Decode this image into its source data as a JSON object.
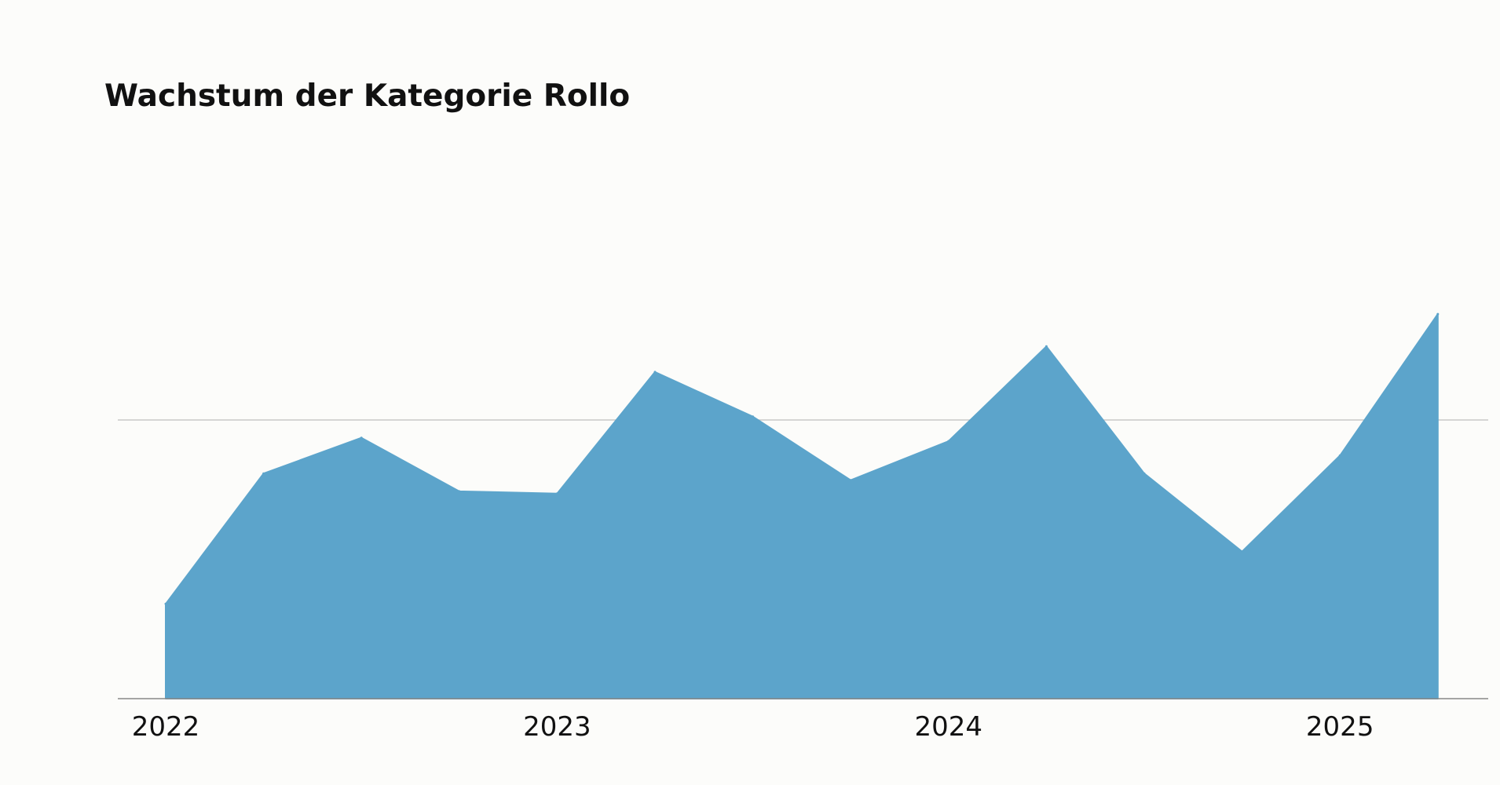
{
  "chart_data": {
    "type": "area",
    "title": "Wachstum der Kategorie Rollo",
    "xlabel": "",
    "ylabel": "",
    "x_start": "2022",
    "x_end": "2025-04",
    "x_ticks": [
      "2022",
      "2023",
      "2024",
      "2025"
    ],
    "series": [
      {
        "values": [
          0.85,
          2.02,
          2.34,
          1.86,
          1.84,
          2.93,
          2.53,
          1.96,
          2.31,
          3.16,
          2.02,
          1.32,
          2.18,
          3.45
        ]
      }
    ],
    "ylim": [
      0,
      5
    ],
    "gridlines_y": [
      2.5
    ],
    "grid": true,
    "legend": "none",
    "colors": {
      "area": "#5ca4cb",
      "gridline": "#c8c8c8",
      "baseline": "#888888",
      "background": "#fcfcfa",
      "text": "#111111"
    }
  }
}
